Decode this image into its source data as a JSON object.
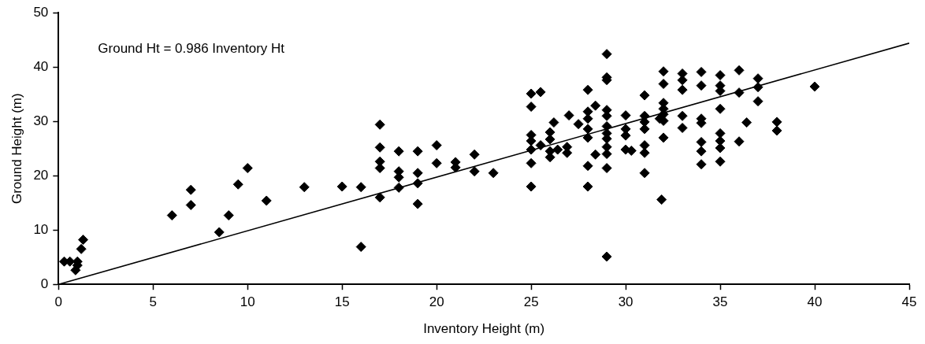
{
  "chart_data": {
    "type": "scatter",
    "xlabel": "Inventory Height (m)",
    "ylabel": "Ground Height (m)",
    "annotations": [
      "Ground Ht = 0.986 Inventory Ht"
    ],
    "xlim": [
      0,
      45
    ],
    "xticks": [
      0,
      5,
      10,
      15,
      20,
      25,
      30,
      35,
      40,
      45
    ],
    "ylim": [
      0,
      50
    ],
    "yticks": [
      0,
      10,
      20,
      30,
      40,
      50
    ],
    "grid": false,
    "legend": false,
    "marker": "diamond",
    "series": [
      {
        "color": "#000000",
        "x": [
          0.3,
          0.6,
          0.9,
          1.0,
          1.0,
          1.2,
          1.3,
          6,
          7,
          7,
          8.5,
          9,
          9.5,
          10,
          11,
          13,
          15,
          16,
          16,
          17,
          17,
          17,
          17,
          17,
          18,
          18,
          18,
          18,
          19,
          19,
          19,
          19,
          20,
          20,
          21,
          21,
          22,
          22,
          23,
          25,
          25,
          25.5,
          25,
          25,
          25,
          25,
          25,
          25.5,
          26,
          26,
          26,
          26,
          26.2,
          26.4,
          26.9,
          26.9,
          27,
          27.5,
          28,
          28,
          28,
          28,
          28,
          28,
          28,
          28.4,
          28.4,
          29,
          29,
          29,
          29,
          29,
          29,
          29,
          29,
          29,
          29,
          29,
          29,
          30,
          30,
          30,
          30,
          30.3,
          31,
          31,
          31,
          31,
          31,
          31,
          31,
          31.8,
          32,
          32,
          32,
          32,
          32,
          32,
          32,
          31.9,
          33,
          33,
          33,
          33,
          33,
          34,
          34,
          34,
          34,
          34,
          34,
          34,
          35,
          35,
          35,
          35,
          35,
          35,
          35,
          35,
          36,
          36,
          36,
          36.4,
          37,
          37,
          37,
          38,
          38,
          40
        ],
        "values": [
          4.2,
          4.2,
          2.6,
          4.2,
          3.5,
          6.5,
          8.2,
          12.7,
          17.4,
          14.6,
          9.6,
          12.7,
          18.4,
          21.4,
          15.4,
          17.9,
          18.0,
          17.9,
          6.9,
          29.4,
          25.2,
          22.6,
          21.4,
          16.0,
          24.5,
          20.8,
          19.7,
          17.8,
          24.5,
          20.5,
          18.6,
          14.8,
          25.6,
          22.3,
          22.5,
          21.5,
          23.9,
          20.8,
          20.5,
          35.1,
          32.7,
          35.4,
          27.5,
          26.4,
          24.8,
          22.3,
          18.0,
          25.6,
          23.4,
          24.5,
          26.7,
          28.0,
          29.8,
          24.8,
          25.3,
          24.2,
          31.1,
          29.5,
          35.8,
          31.8,
          30.5,
          28.6,
          27.0,
          21.8,
          18.0,
          32.9,
          23.9,
          42.4,
          38.1,
          37.6,
          32.1,
          31.0,
          29.1,
          27.8,
          26.8,
          25.3,
          24.0,
          21.4,
          5.1,
          31.1,
          28.6,
          27.4,
          24.8,
          24.6,
          34.8,
          31.0,
          29.9,
          28.6,
          25.6,
          24.2,
          20.5,
          30.5,
          39.2,
          36.9,
          33.4,
          32.3,
          31.3,
          30.1,
          27.0,
          15.6,
          38.8,
          37.6,
          35.8,
          31.0,
          28.8,
          39.1,
          36.6,
          30.5,
          29.7,
          26.2,
          24.5,
          22.1,
          38.5,
          36.6,
          35.6,
          32.3,
          27.8,
          26.4,
          25.1,
          22.6,
          39.4,
          35.3,
          26.3,
          29.8,
          37.9,
          36.3,
          33.7,
          29.9,
          28.3,
          36.4
        ]
      },
      {
        "type": "line",
        "color": "#000000",
        "marker": "none",
        "line_style": "solid",
        "x": [
          0,
          45
        ],
        "values": [
          0,
          44.4
        ]
      }
    ]
  }
}
